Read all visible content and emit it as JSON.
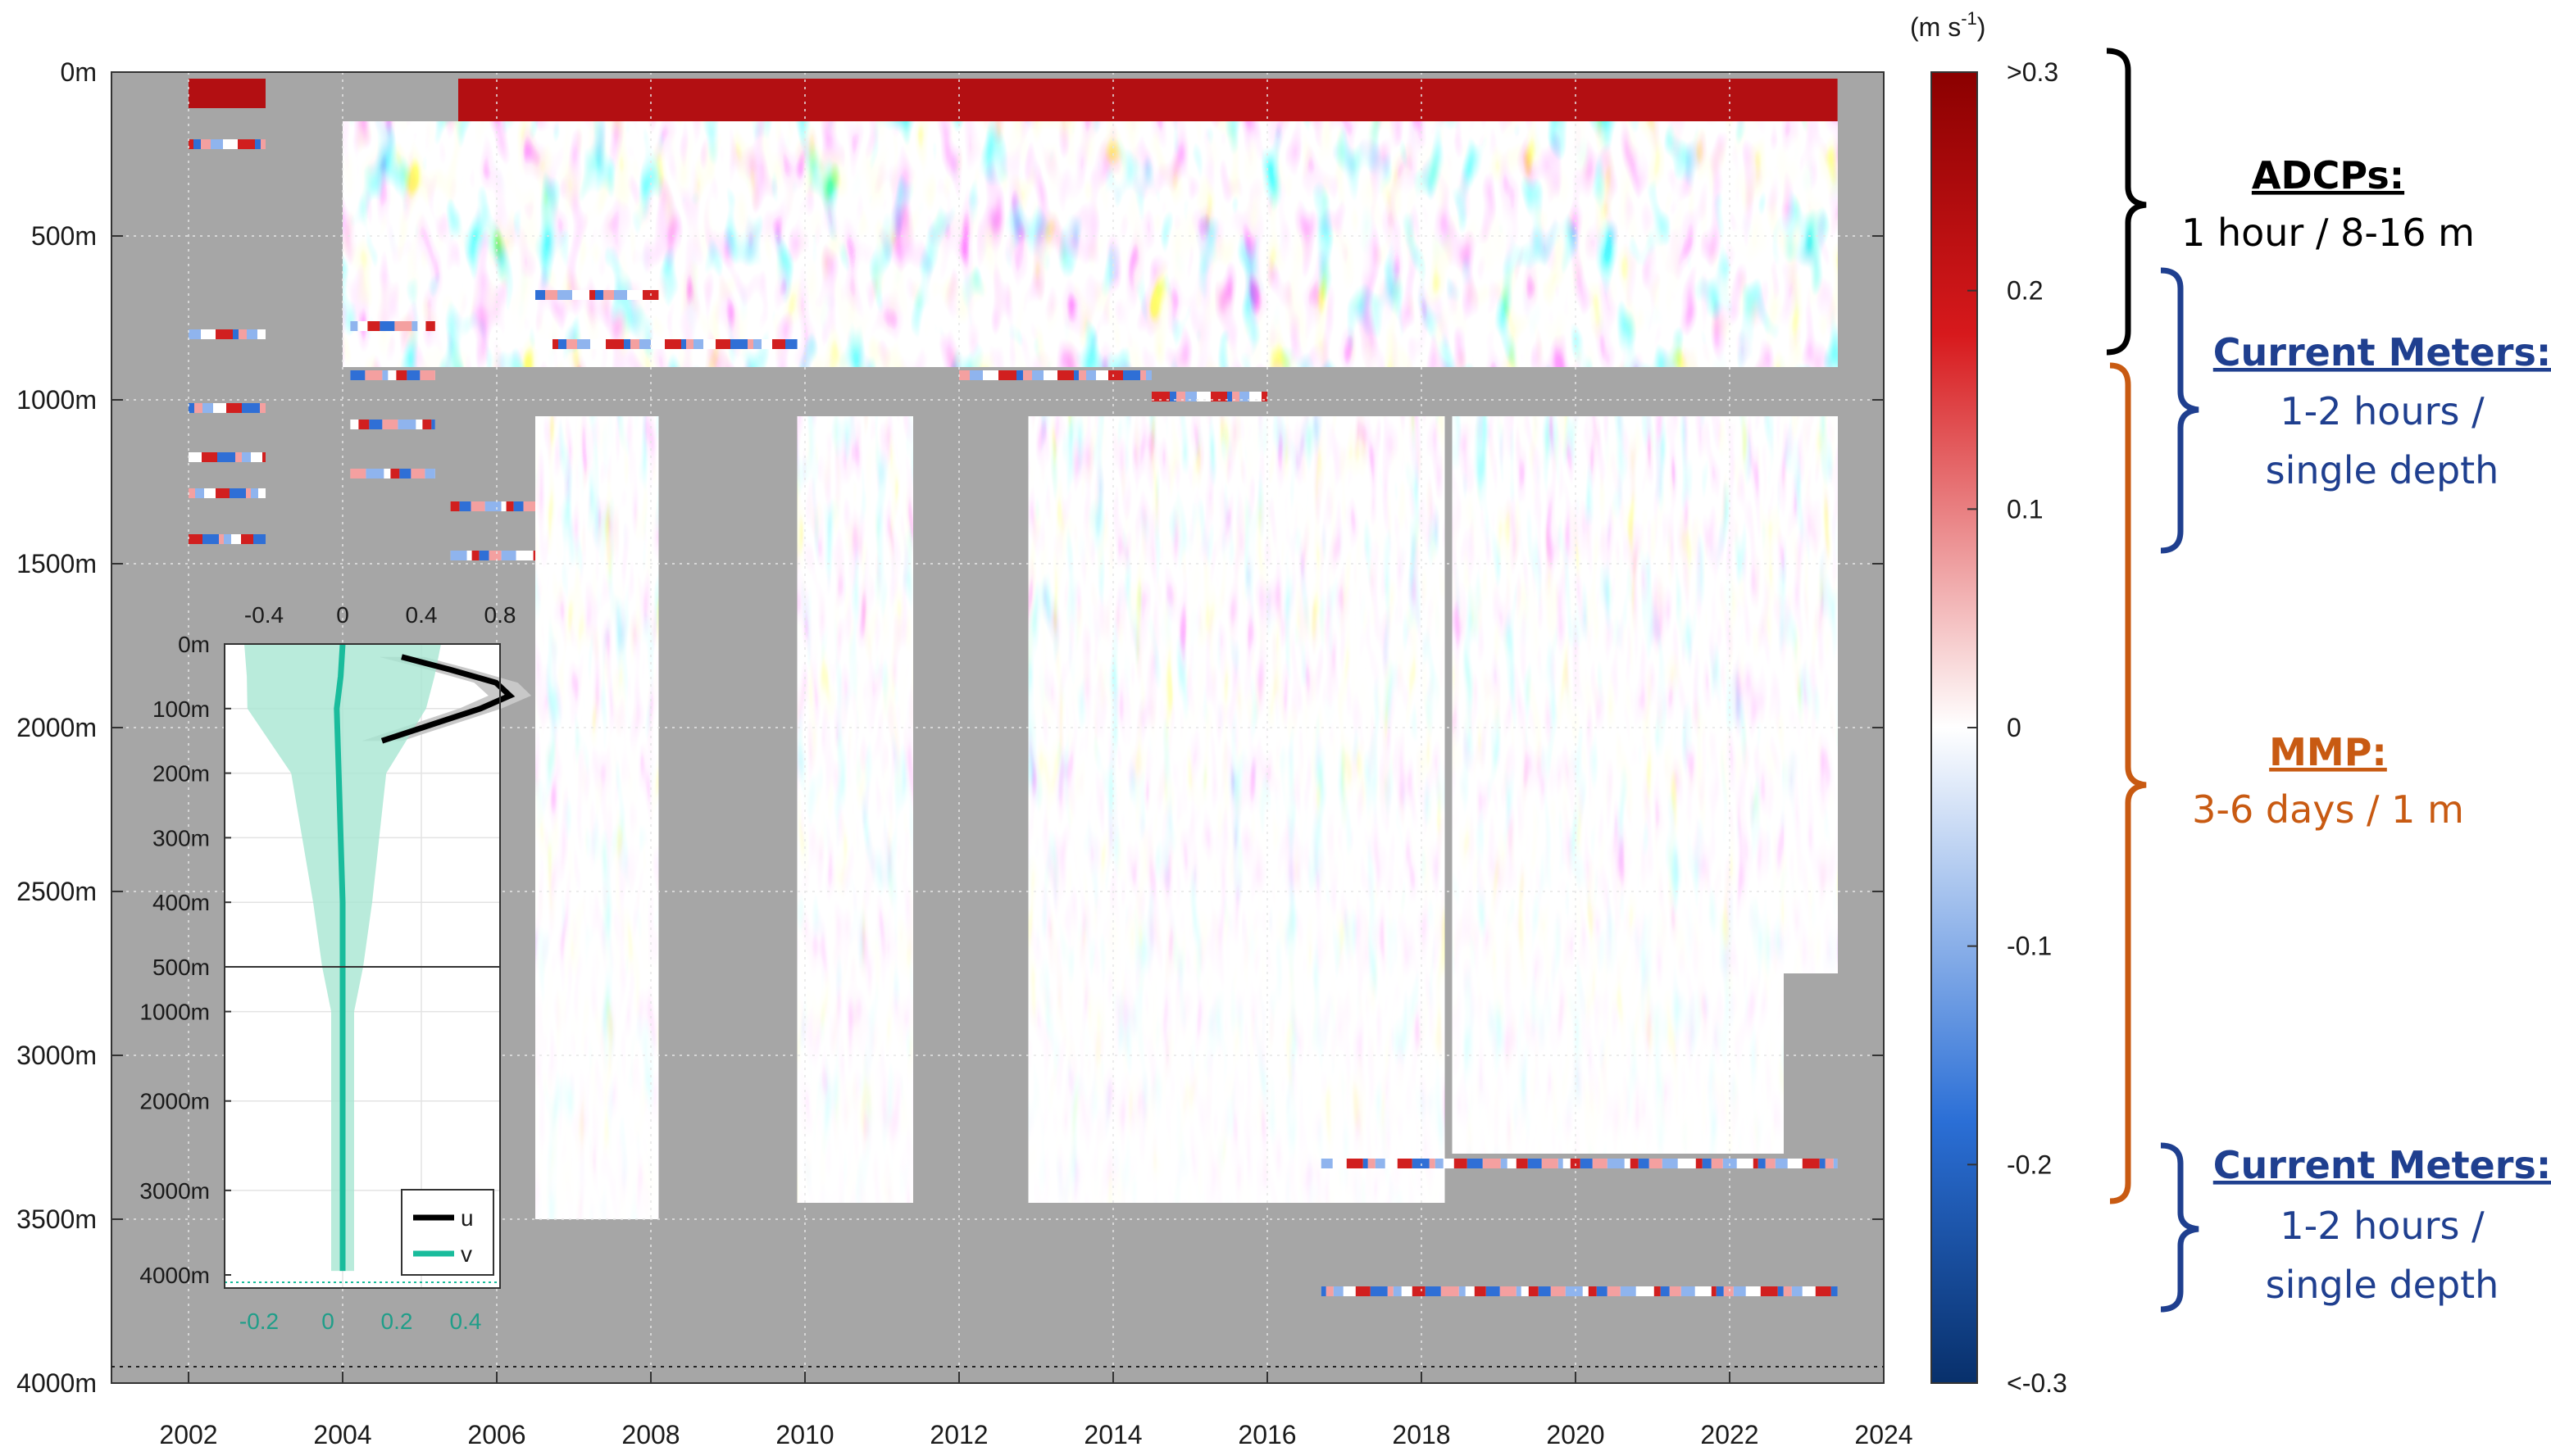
{
  "chart_data": [
    {
      "type": "heatmap",
      "title": "",
      "xlabel": "",
      "ylabel": "",
      "x_range": [
        2001,
        2024
      ],
      "x_ticks": [
        2002,
        2004,
        2006,
        2008,
        2010,
        2012,
        2014,
        2016,
        2018,
        2020,
        2022,
        2024
      ],
      "x_tick_labels": [
        "2002",
        "2004",
        "2006",
        "2008",
        "2010",
        "2012",
        "2014",
        "2016",
        "2018",
        "2020",
        "2022",
        "2024"
      ],
      "y_range_m": [
        0,
        4000
      ],
      "y_tick_labels": [
        "0m",
        "500m",
        "1000m",
        "1500m",
        "2000m",
        "2500m",
        "3000m",
        "3500m",
        "4000m"
      ],
      "grid": true,
      "bottom_reference_depth_m": 3950,
      "missing_data_color": "#a6a6a6",
      "colorbar": {
        "unit_label": "(m s",
        "unit_exponent": "-1",
        "unit_close": ")",
        "ticks": [
          ">0.3",
          "0.2",
          "0.1",
          "0",
          "-0.1",
          "-0.2",
          "<-0.3"
        ],
        "tick_values": [
          0.3,
          0.2,
          0.1,
          0,
          -0.1,
          -0.2,
          -0.3
        ],
        "colors": [
          "#08306b",
          "#2f6fd6",
          "#ffffff",
          "#d11f1f",
          "#8b0000"
        ]
      },
      "data_blocks": [
        {
          "x0": 2002.0,
          "x1": 2003.0,
          "y0": 20,
          "y1": 110,
          "type": "solid-red"
        },
        {
          "x0": 2005.5,
          "x1": 2023.4,
          "y0": 20,
          "y1": 150,
          "type": "solid-red"
        },
        {
          "x0": 2004.0,
          "x1": 2023.4,
          "y0": 150,
          "y1": 900,
          "type": "field"
        },
        {
          "x0": 2006.5,
          "x1": 2008.1,
          "y0": 1050,
          "y1": 3500,
          "type": "field-fade"
        },
        {
          "x0": 2009.9,
          "x1": 2011.4,
          "y0": 1050,
          "y1": 3450,
          "type": "field-fade"
        },
        {
          "x0": 2012.9,
          "x1": 2018.3,
          "y0": 1050,
          "y1": 3450,
          "type": "field-fade"
        },
        {
          "x0": 2018.4,
          "x1": 2022.7,
          "y0": 1050,
          "y1": 3300,
          "type": "field-fade"
        },
        {
          "x0": 2022.7,
          "x1": 2023.4,
          "y0": 1050,
          "y1": 2750,
          "type": "field-fade"
        }
      ],
      "mooring_lines": [
        {
          "x0": 2002.0,
          "x1": 2003.0,
          "y": 220
        },
        {
          "x0": 2002.0,
          "x1": 2003.0,
          "y": 800
        },
        {
          "x0": 2002.0,
          "x1": 2003.0,
          "y": 1025
        },
        {
          "x0": 2002.0,
          "x1": 2003.0,
          "y": 1175
        },
        {
          "x0": 2002.0,
          "x1": 2003.0,
          "y": 1285
        },
        {
          "x0": 2002.0,
          "x1": 2003.0,
          "y": 1425
        },
        {
          "x0": 2004.1,
          "x1": 2005.2,
          "y": 775
        },
        {
          "x0": 2004.1,
          "x1": 2005.2,
          "y": 925
        },
        {
          "x0": 2004.1,
          "x1": 2005.2,
          "y": 1075
        },
        {
          "x0": 2004.1,
          "x1": 2005.2,
          "y": 1225
        },
        {
          "x0": 2005.4,
          "x1": 2006.5,
          "y": 1325
        },
        {
          "x0": 2005.4,
          "x1": 2006.5,
          "y": 1475
        },
        {
          "x0": 2006.5,
          "x1": 2008.1,
          "y": 680
        },
        {
          "x0": 2006.5,
          "x1": 2009.9,
          "y": 830
        },
        {
          "x0": 2012.0,
          "x1": 2014.5,
          "y": 925
        },
        {
          "x0": 2014.5,
          "x1": 2016.0,
          "y": 990
        },
        {
          "x0": 2016.7,
          "x1": 2023.4,
          "y": 3330
        },
        {
          "x0": 2016.7,
          "x1": 2023.4,
          "y": 3720
        }
      ]
    },
    {
      "type": "line",
      "title": "",
      "legend": {
        "position": "bottom-right"
      },
      "x_top_ticks": [
        "-0.4",
        "0",
        "0.4",
        "0.8"
      ],
      "x_bottom_ticks": [
        "-0.2",
        "0",
        "0.2",
        "0.4"
      ],
      "y_upper_ticks": [
        "0m",
        "100m",
        "200m",
        "300m",
        "400m",
        "500m"
      ],
      "y_lower_ticks": [
        "1000m",
        "2000m",
        "3000m",
        "4000m"
      ],
      "series": [
        {
          "name": "u",
          "color": "#000000",
          "depth_m": [
            20,
            40,
            60,
            80,
            100,
            120,
            150
          ],
          "values": [
            0.3,
            0.55,
            0.78,
            0.85,
            0.7,
            0.5,
            0.2
          ]
        },
        {
          "name": "v",
          "color": "#1abc9c",
          "depth_m": [
            0,
            50,
            100,
            200,
            300,
            400,
            500,
            1000,
            2000,
            3000,
            3900
          ],
          "values": [
            0.0,
            -0.01,
            -0.03,
            -0.02,
            -0.01,
            0.0,
            0.0,
            0.0,
            0.0,
            0.0,
            0.0
          ]
        }
      ]
    }
  ],
  "annotations": [
    {
      "title": "ADCPs:",
      "detail": "1 hour / 8-16 m",
      "color": "#000000"
    },
    {
      "title": "Current Meters:",
      "detail_1": "1-2 hours /",
      "detail_2": "single depth",
      "color": "#1f3f8f"
    },
    {
      "title": "MMP:",
      "detail": "3-6 days / 1 m",
      "color": "#c85a12"
    },
    {
      "title": "Current Meters:",
      "detail_1": "1-2 hours /",
      "detail_2": "single depth",
      "color": "#1f3f8f"
    }
  ]
}
